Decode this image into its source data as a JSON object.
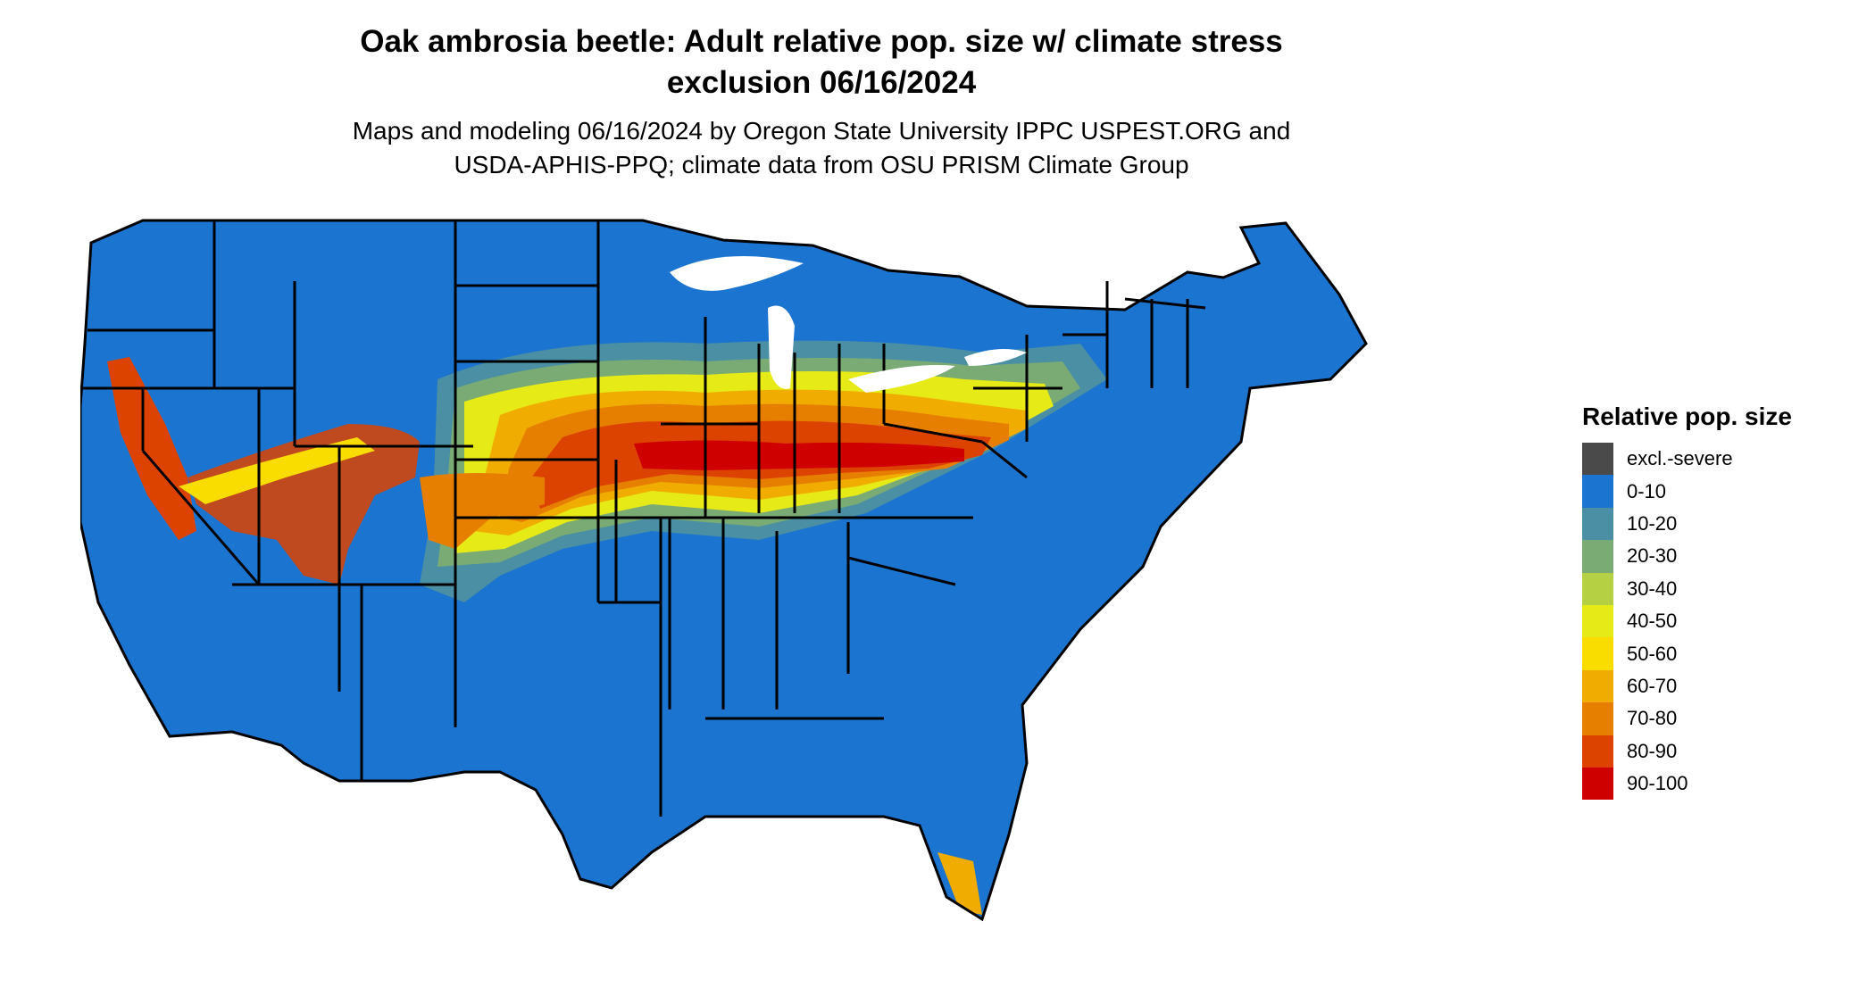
{
  "title_line1": "Oak ambrosia beetle: Adult relative pop. size w/ climate stress",
  "title_line2": "exclusion 06/16/2024",
  "subtitle_line1": "Maps and modeling 06/16/2024 by Oregon State University IPPC USPEST.ORG and",
  "subtitle_line2": "USDA-APHIS-PPQ; climate data from OSU PRISM Climate Group",
  "legend": {
    "title": "Relative pop. size",
    "items": [
      {
        "label": "excl.-severe",
        "color": "#4a4a4a"
      },
      {
        "label": "0-10",
        "color": "#1b74cf"
      },
      {
        "label": "10-20",
        "color": "#4a8fa3"
      },
      {
        "label": "20-30",
        "color": "#7aab74"
      },
      {
        "label": "30-40",
        "color": "#b5d043"
      },
      {
        "label": "40-50",
        "color": "#e6ea16"
      },
      {
        "label": "50-60",
        "color": "#f9dc00"
      },
      {
        "label": "60-70",
        "color": "#f0ad00"
      },
      {
        "label": "70-80",
        "color": "#e67e00"
      },
      {
        "label": "80-90",
        "color": "#dc4300"
      },
      {
        "label": "90-100",
        "color": "#cf0000"
      }
    ]
  }
}
